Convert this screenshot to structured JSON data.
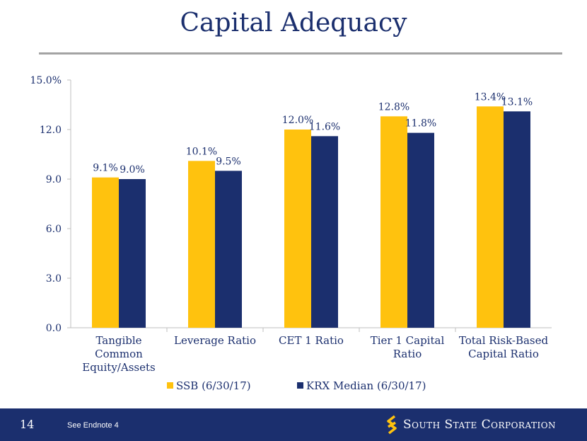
{
  "page": {
    "title": "Capital Adequacy",
    "page_number": "14",
    "endnote": "See Endnote 4",
    "company_name": "South State Corporation",
    "colors": {
      "navy": "#1b2f6e",
      "gold": "#ffc20e",
      "rule": "#a3a3a3"
    }
  },
  "chart_data": {
    "type": "bar",
    "categories": [
      [
        "Tangible",
        "Common",
        "Equity/Assets"
      ],
      [
        "Leverage Ratio"
      ],
      [
        "CET 1 Ratio"
      ],
      [
        "Tier 1 Capital",
        "Ratio"
      ],
      [
        "Total Risk-Based",
        "Capital Ratio"
      ]
    ],
    "series": [
      {
        "name": "SSB (6/30/17)",
        "color": "#ffc20e",
        "values": [
          9.1,
          10.1,
          12.0,
          12.8,
          13.4
        ],
        "labels": [
          "9.1%",
          "10.1%",
          "12.0%",
          "12.8%",
          "13.4%"
        ]
      },
      {
        "name": "KRX Median (6/30/17)",
        "color": "#1b2f6e",
        "values": [
          9.0,
          9.5,
          11.6,
          11.8,
          13.1
        ],
        "labels": [
          "9.0%",
          "9.5%",
          "11.6%",
          "11.8%",
          "13.1%"
        ]
      }
    ],
    "ylim": [
      0,
      15
    ],
    "yticks": [
      0,
      3,
      6,
      9,
      12,
      15
    ],
    "ytick_labels": [
      "0.0",
      "3.0",
      "6.0",
      "9.0",
      "12.0",
      "15.0%"
    ],
    "grid": false,
    "legend": "bottom"
  }
}
